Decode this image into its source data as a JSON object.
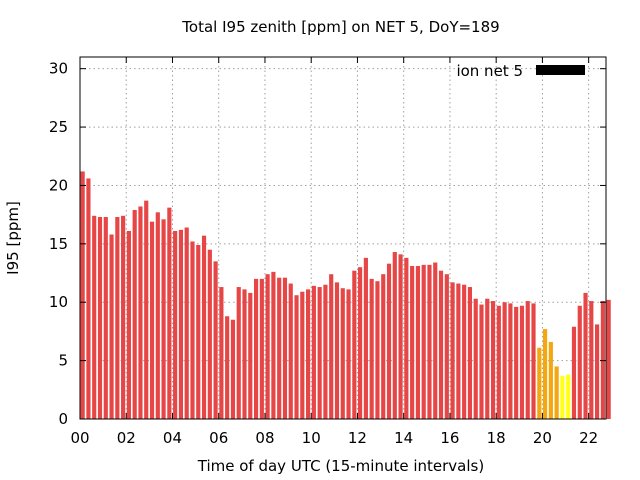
{
  "chart_data": {
    "type": "bar",
    "title": "Total I95 zenith [ppm] on NET 5, DoY=189",
    "xlabel": "Time of day UTC (15-minute intervals)",
    "ylabel": "I95 [ppm]",
    "xlim": [
      0,
      22.75
    ],
    "ylim": [
      0,
      31
    ],
    "x_tick_labels": [
      "00",
      "02",
      "04",
      "06",
      "08",
      "10",
      "12",
      "14",
      "16",
      "18",
      "20",
      "22"
    ],
    "x_tick_values": [
      0,
      2,
      4,
      6,
      8,
      10,
      12,
      14,
      16,
      18,
      20,
      22
    ],
    "y_tick_labels": [
      "0",
      "5",
      "10",
      "15",
      "20",
      "25",
      "30"
    ],
    "y_tick_values": [
      0,
      5,
      10,
      15,
      20,
      25,
      30
    ],
    "grid": true,
    "legend_position": "top-right",
    "series": [
      {
        "name": "ion net 5",
        "legend_color": "#000000",
        "interval_hours": 0.25,
        "start_hour": 0,
        "values": [
          21.2,
          20.6,
          17.4,
          17.3,
          17.3,
          15.8,
          17.3,
          17.4,
          16.1,
          17.9,
          18.2,
          18.7,
          16.9,
          17.7,
          17.1,
          18.1,
          16.1,
          16.2,
          16.4,
          15.2,
          14.9,
          15.7,
          14.5,
          13.5,
          11.3,
          8.8,
          8.5,
          11.3,
          11.1,
          10.8,
          12.0,
          12.0,
          12.4,
          12.6,
          12.1,
          12.1,
          11.6,
          10.6,
          10.9,
          11.1,
          11.4,
          11.3,
          11.5,
          12.4,
          11.7,
          11.2,
          11.1,
          12.7,
          13.0,
          13.8,
          12.0,
          11.8,
          12.4,
          13.3,
          14.3,
          14.1,
          13.8,
          13.1,
          13.1,
          13.2,
          13.2,
          13.4,
          12.7,
          12.4,
          11.7,
          11.6,
          11.5,
          11.3,
          10.3,
          9.8,
          10.3,
          10.1,
          9.7,
          10.0,
          9.9,
          9.6,
          9.7,
          10.1,
          9.9,
          6.1,
          7.7,
          6.6,
          4.5,
          3.7,
          3.8,
          7.9,
          9.7,
          10.8,
          10.1,
          8.1,
          10.1,
          10.2
        ]
      }
    ],
    "colors": {
      "high": "#e64646",
      "mid": "#f5a70f",
      "low": "#ffff17"
    }
  }
}
